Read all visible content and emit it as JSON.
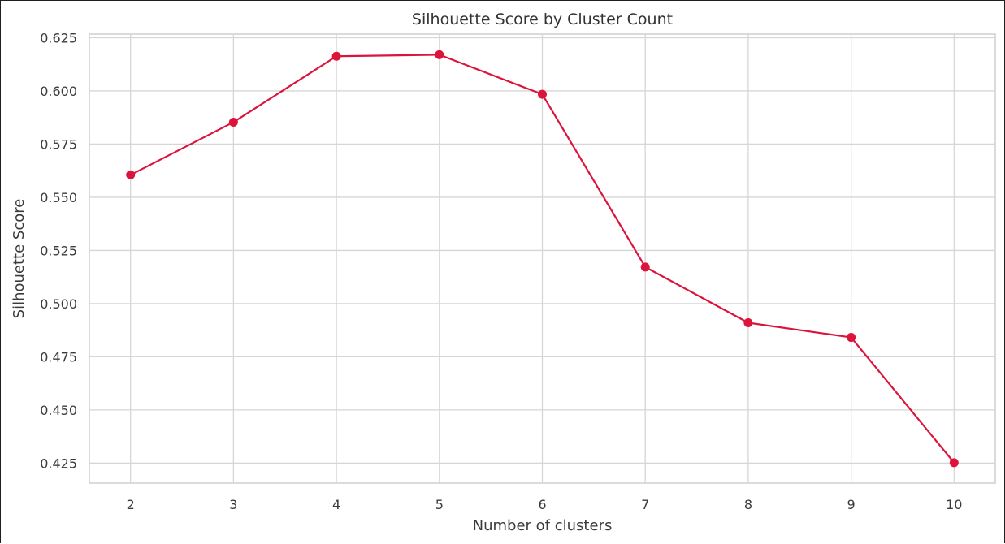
{
  "chart_data": {
    "type": "line",
    "title": "Silhouette Score by Cluster Count",
    "xlabel": "Number of clusters",
    "ylabel": "Silhouette Score",
    "x": [
      2,
      3,
      4,
      5,
      6,
      7,
      8,
      9,
      10
    ],
    "y": [
      0.5605,
      0.5853,
      0.6163,
      0.617,
      0.5984,
      0.5172,
      0.491,
      0.4841,
      0.4252
    ],
    "xticks": [
      "2",
      "3",
      "4",
      "5",
      "6",
      "7",
      "8",
      "9",
      "10"
    ],
    "yticks": [
      "0.425",
      "0.450",
      "0.475",
      "0.500",
      "0.525",
      "0.550",
      "0.575",
      "0.600",
      "0.625"
    ],
    "ytick_values": [
      0.425,
      0.45,
      0.475,
      0.5,
      0.525,
      0.55,
      0.575,
      0.6,
      0.625
    ],
    "xlim": [
      1.6,
      10.4
    ],
    "ylim": [
      0.4156,
      0.6267
    ],
    "grid": true,
    "line_color": "#dc143c",
    "marker": "circle"
  }
}
